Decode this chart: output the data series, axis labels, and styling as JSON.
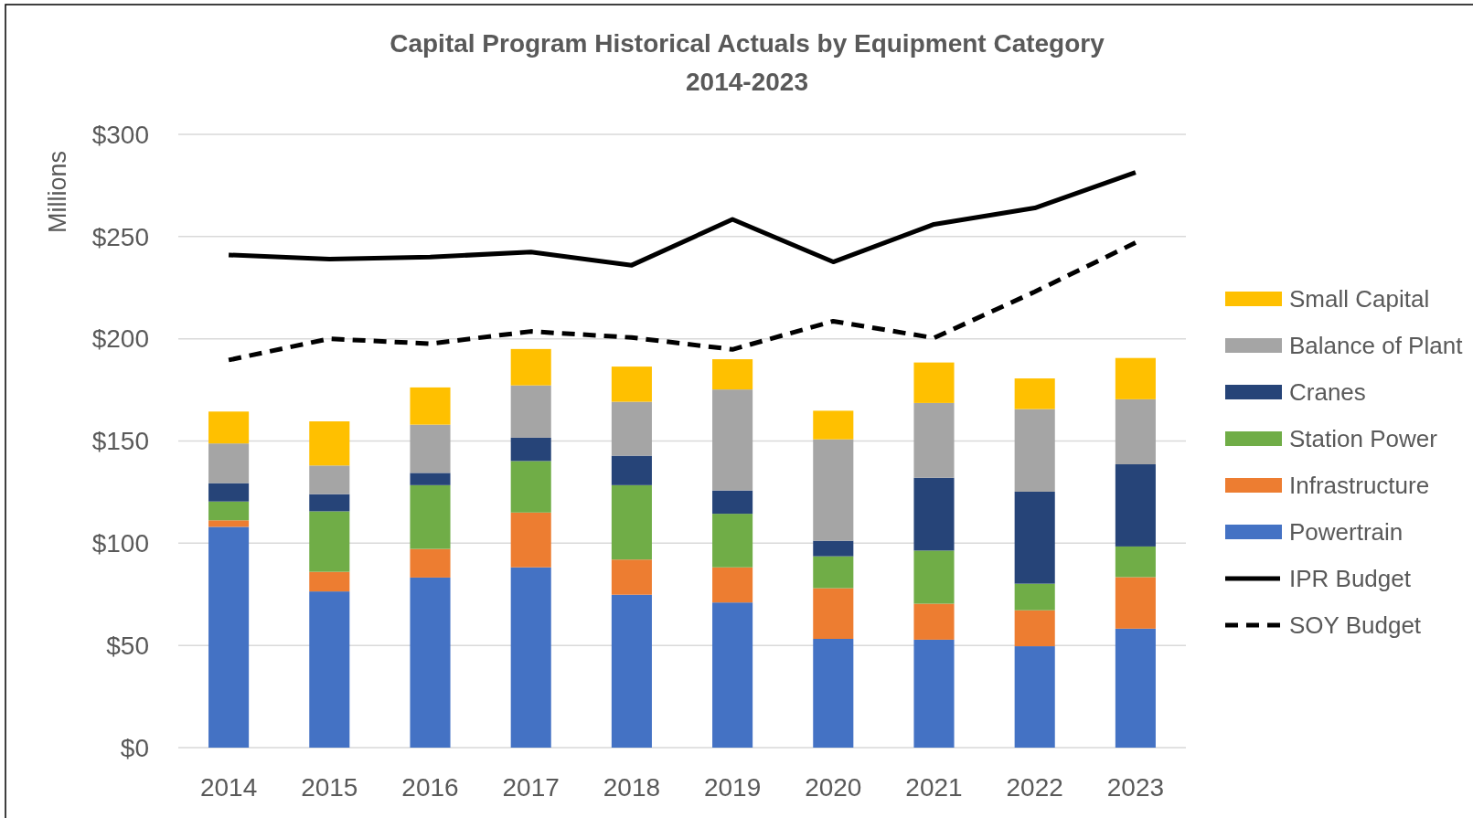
{
  "chart_data": {
    "type": "bar",
    "title": "Capital Program Historical Actuals by Equipment Category",
    "subtitle": "2014-2023",
    "ylabel": "Millions",
    "categories": [
      "2014",
      "2015",
      "2016",
      "2017",
      "2018",
      "2019",
      "2020",
      "2021",
      "2022",
      "2023"
    ],
    "stacked": true,
    "series": [
      {
        "name": "Powertrain",
        "color": "#4472c4",
        "values": [
          108,
          76.4,
          83.2,
          88.2,
          74.8,
          71,
          53.2,
          52.8,
          49.6,
          58.2
        ]
      },
      {
        "name": "Infrastructure",
        "color": "#ed7d31",
        "values": [
          3.2,
          9.6,
          14,
          26.8,
          17.2,
          17.2,
          24.8,
          17.6,
          17.6,
          25.2
        ]
      },
      {
        "name": "Station Power",
        "color": "#70ad47",
        "values": [
          9.2,
          29.6,
          31.2,
          25.2,
          36.4,
          26.2,
          15.6,
          26,
          13,
          15
        ]
      },
      {
        "name": "Cranes",
        "color": "#264478",
        "values": [
          9,
          8.4,
          6,
          11.4,
          14.4,
          11.4,
          7.6,
          35.6,
          45,
          40.2
        ]
      },
      {
        "name": "Balance of Plant",
        "color": "#a5a5a5",
        "values": [
          19.4,
          14,
          23.6,
          25.6,
          26.4,
          49.4,
          49.6,
          36.6,
          40.4,
          31.8
        ]
      },
      {
        "name": "Small Capital",
        "color": "#ffc000",
        "values": [
          15.6,
          21.6,
          18.2,
          17.8,
          17.2,
          14.8,
          14,
          19.8,
          15,
          20.2
        ]
      },
      {
        "name": "IPR Budget",
        "type": "line",
        "line_style": "solid",
        "color": "#000000",
        "values": [
          241,
          239,
          240,
          242.4,
          236,
          258.4,
          237.6,
          256,
          264,
          281.4
        ]
      },
      {
        "name": "SOY Budget",
        "type": "line",
        "line_style": "dashed",
        "color": "#000000",
        "values": [
          189.6,
          200,
          197.6,
          203.6,
          200.6,
          194.8,
          208.6,
          200.4,
          223,
          247
        ]
      }
    ],
    "ylim": [
      0,
      300
    ],
    "yticks": [
      {
        "value": 0,
        "label": "$0"
      },
      {
        "value": 50,
        "label": "$50"
      },
      {
        "value": 100,
        "label": "$100"
      },
      {
        "value": 150,
        "label": "$150"
      },
      {
        "value": 200,
        "label": "$200"
      },
      {
        "value": 250,
        "label": "$250"
      },
      {
        "value": 300,
        "label": "$300"
      }
    ],
    "grid": "y",
    "legend": "right"
  }
}
